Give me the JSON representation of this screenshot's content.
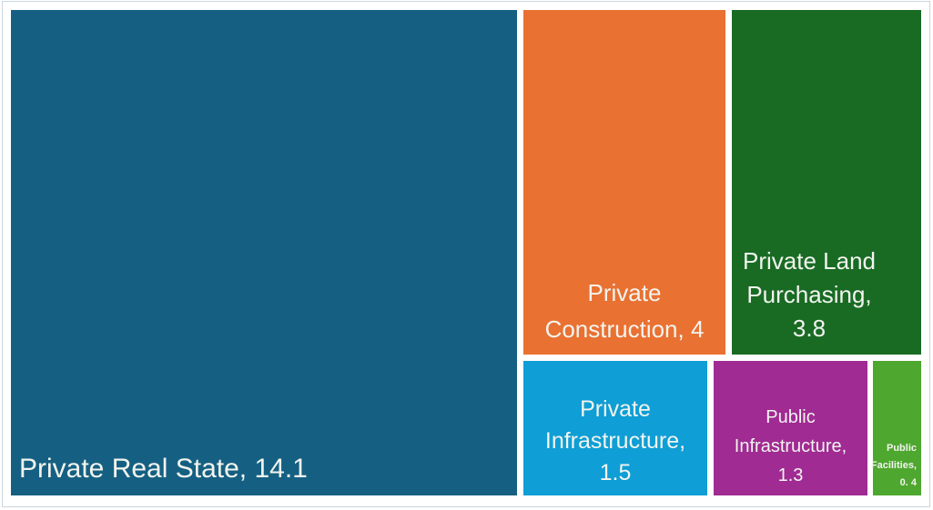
{
  "chart_data": {
    "type": "treemap",
    "title": "",
    "legend": "none",
    "label_text_color": "#f2f4ef",
    "items": [
      {
        "name": "Private Real State",
        "value": 14.1,
        "color": "#156082",
        "lines": [
          "Private Real State, 14.1"
        ]
      },
      {
        "name": "Private Construction",
        "value": 4,
        "color": "#E97132",
        "lines": [
          "Private",
          "Construction, 4"
        ]
      },
      {
        "name": "Private Land Purchasing",
        "value": 3.8,
        "color": "#196B24",
        "lines": [
          "Private Land",
          "Purchasing,",
          "3.8"
        ]
      },
      {
        "name": "Private Infrastructure",
        "value": 1.5,
        "color": "#0F9ED5",
        "lines": [
          "Private",
          "Infrastructure,",
          "1.5"
        ]
      },
      {
        "name": "Public Infrastructure",
        "value": 1.3,
        "color": "#A02B93",
        "lines": [
          "Public",
          "Infrastructure,",
          "1.3"
        ]
      },
      {
        "name": "Public Facilities",
        "value": 0.4,
        "color": "#4EA72E",
        "lines": [
          "Public",
          "Facilities,",
          "0. 4"
        ]
      }
    ]
  }
}
